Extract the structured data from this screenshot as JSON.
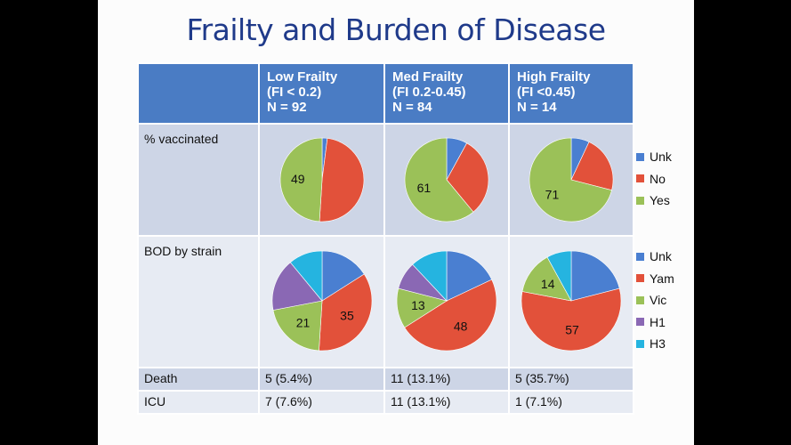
{
  "title": "Frailty and Burden of Disease",
  "columns": [
    {
      "line1": "Low Frailty",
      "line2": "(FI < 0.2)",
      "line3": "N = 92"
    },
    {
      "line1": "Med Frailty",
      "line2": "(FI 0.2-0.45)",
      "line3": "N = 84"
    },
    {
      "line1": "High Frailty",
      "line2": "(FI <0.45)",
      "line3": "N = 14"
    }
  ],
  "rows": {
    "vaccinated_label": "% vaccinated",
    "bod_label": "BOD by strain",
    "death_label": "Death",
    "icu_label": "ICU"
  },
  "death": [
    "5 (5.4%)",
    "11 (13.1%)",
    "5 (35.7%)"
  ],
  "icu": [
    "7 (7.6%)",
    "11 (13.1%)",
    "1 (7.1%)"
  ],
  "colors": {
    "Unk": "#4a7fd1",
    "No": "#e2513a",
    "Yam": "#e2513a",
    "Yes": "#9bc158",
    "Vic": "#9bc158",
    "H1": "#8a68b4",
    "H3": "#25b4e0"
  },
  "chart_data": [
    {
      "type": "pie",
      "group": "% vaccinated",
      "legend": [
        "Unk",
        "No",
        "Yes"
      ],
      "pies": [
        {
          "column": "Low Frailty",
          "values": {
            "Unk": 2,
            "No": 49,
            "Yes": 49
          },
          "labels": {
            "Yes": "49"
          }
        },
        {
          "column": "Med Frailty",
          "values": {
            "Unk": 8,
            "No": 31,
            "Yes": 61
          },
          "labels": {
            "Yes": "61"
          }
        },
        {
          "column": "High Frailty",
          "values": {
            "Unk": 7,
            "No": 22,
            "Yes": 71
          },
          "labels": {
            "Yes": "71"
          }
        }
      ]
    },
    {
      "type": "pie",
      "group": "BOD by strain",
      "legend": [
        "Unk",
        "Yam",
        "Vic",
        "H1",
        "H3"
      ],
      "pies": [
        {
          "column": "Low Frailty",
          "values": {
            "Unk": 16,
            "Yam": 35,
            "Vic": 21,
            "H1": 17,
            "H3": 11
          },
          "labels": {
            "Yam": "35",
            "Vic": "21"
          }
        },
        {
          "column": "Med Frailty",
          "values": {
            "Unk": 18,
            "Yam": 48,
            "Vic": 13,
            "H1": 9,
            "H3": 12
          },
          "labels": {
            "Yam": "48",
            "Vic": "13"
          }
        },
        {
          "column": "High Frailty",
          "values": {
            "Unk": 21,
            "Yam": 57,
            "Vic": 14,
            "H1": 0,
            "H3": 8
          },
          "labels": {
            "Yam": "57",
            "Vic": "14"
          }
        }
      ]
    }
  ]
}
